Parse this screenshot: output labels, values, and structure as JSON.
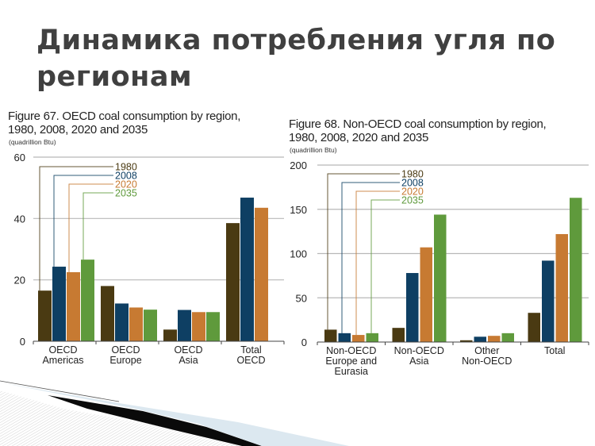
{
  "slide": {
    "title": "Динамика потребления угля по регионам"
  },
  "colors": {
    "1980": "#4a3a12",
    "2008": "#0e3f63",
    "2020": "#c77a32",
    "2035": "#5f9a3c",
    "grid": "#b8b8b8",
    "axis": "#444444"
  },
  "chart_data": [
    {
      "type": "bar",
      "title": "Figure 67. OECD coal consumption by region, 1980, 2008, 2020 and 2035",
      "title_line1": "Figure 67. OECD coal consumption by region,",
      "title_line2": "1980, 2008, 2020 and 2035",
      "unit": "(quadrillion Btu)",
      "ylabel": "quadrillion Btu",
      "xlabel": "",
      "ylim": [
        0,
        60
      ],
      "yticks": [
        0,
        20,
        40,
        60
      ],
      "grid": true,
      "legend_position": "top-left (leader lines)",
      "categories": [
        "OECD Americas",
        "OECD Europe",
        "OECD Asia",
        "Total OECD"
      ],
      "series": [
        {
          "name": "1980",
          "values": [
            16.5,
            18.0,
            3.8,
            38.5
          ]
        },
        {
          "name": "2008",
          "values": [
            24.3,
            12.3,
            10.2,
            46.8
          ]
        },
        {
          "name": "2020",
          "values": [
            22.5,
            11.0,
            9.5,
            43.5
          ]
        },
        {
          "name": "2035",
          "values": [
            26.6,
            10.3,
            9.5,
            null
          ]
        }
      ]
    },
    {
      "type": "bar",
      "title": "Figure 68. Non-OECD coal consumption by region, 1980, 2008, 2020 and 2035",
      "title_line1": "Figure 68. Non-OECD coal consumption by region,",
      "title_line2": "1980, 2008, 2020 and 2035",
      "unit": "(quadrillion Btu)",
      "ylabel": "quadrillion Btu",
      "xlabel": "",
      "ylim": [
        0,
        200
      ],
      "yticks": [
        0,
        50,
        100,
        150,
        200
      ],
      "grid": true,
      "legend_position": "top-left (leader lines)",
      "categories": [
        "Non-OECD Europe and Eurasia",
        "Non-OECD Asia",
        "Other Non-OECD",
        "Total"
      ],
      "series": [
        {
          "name": "1980",
          "values": [
            14,
            16,
            2,
            33
          ]
        },
        {
          "name": "2008",
          "values": [
            10,
            78,
            6,
            92
          ]
        },
        {
          "name": "2020",
          "values": [
            8,
            107,
            7,
            122
          ]
        },
        {
          "name": "2035",
          "values": [
            10,
            144,
            10,
            163
          ]
        }
      ]
    }
  ]
}
